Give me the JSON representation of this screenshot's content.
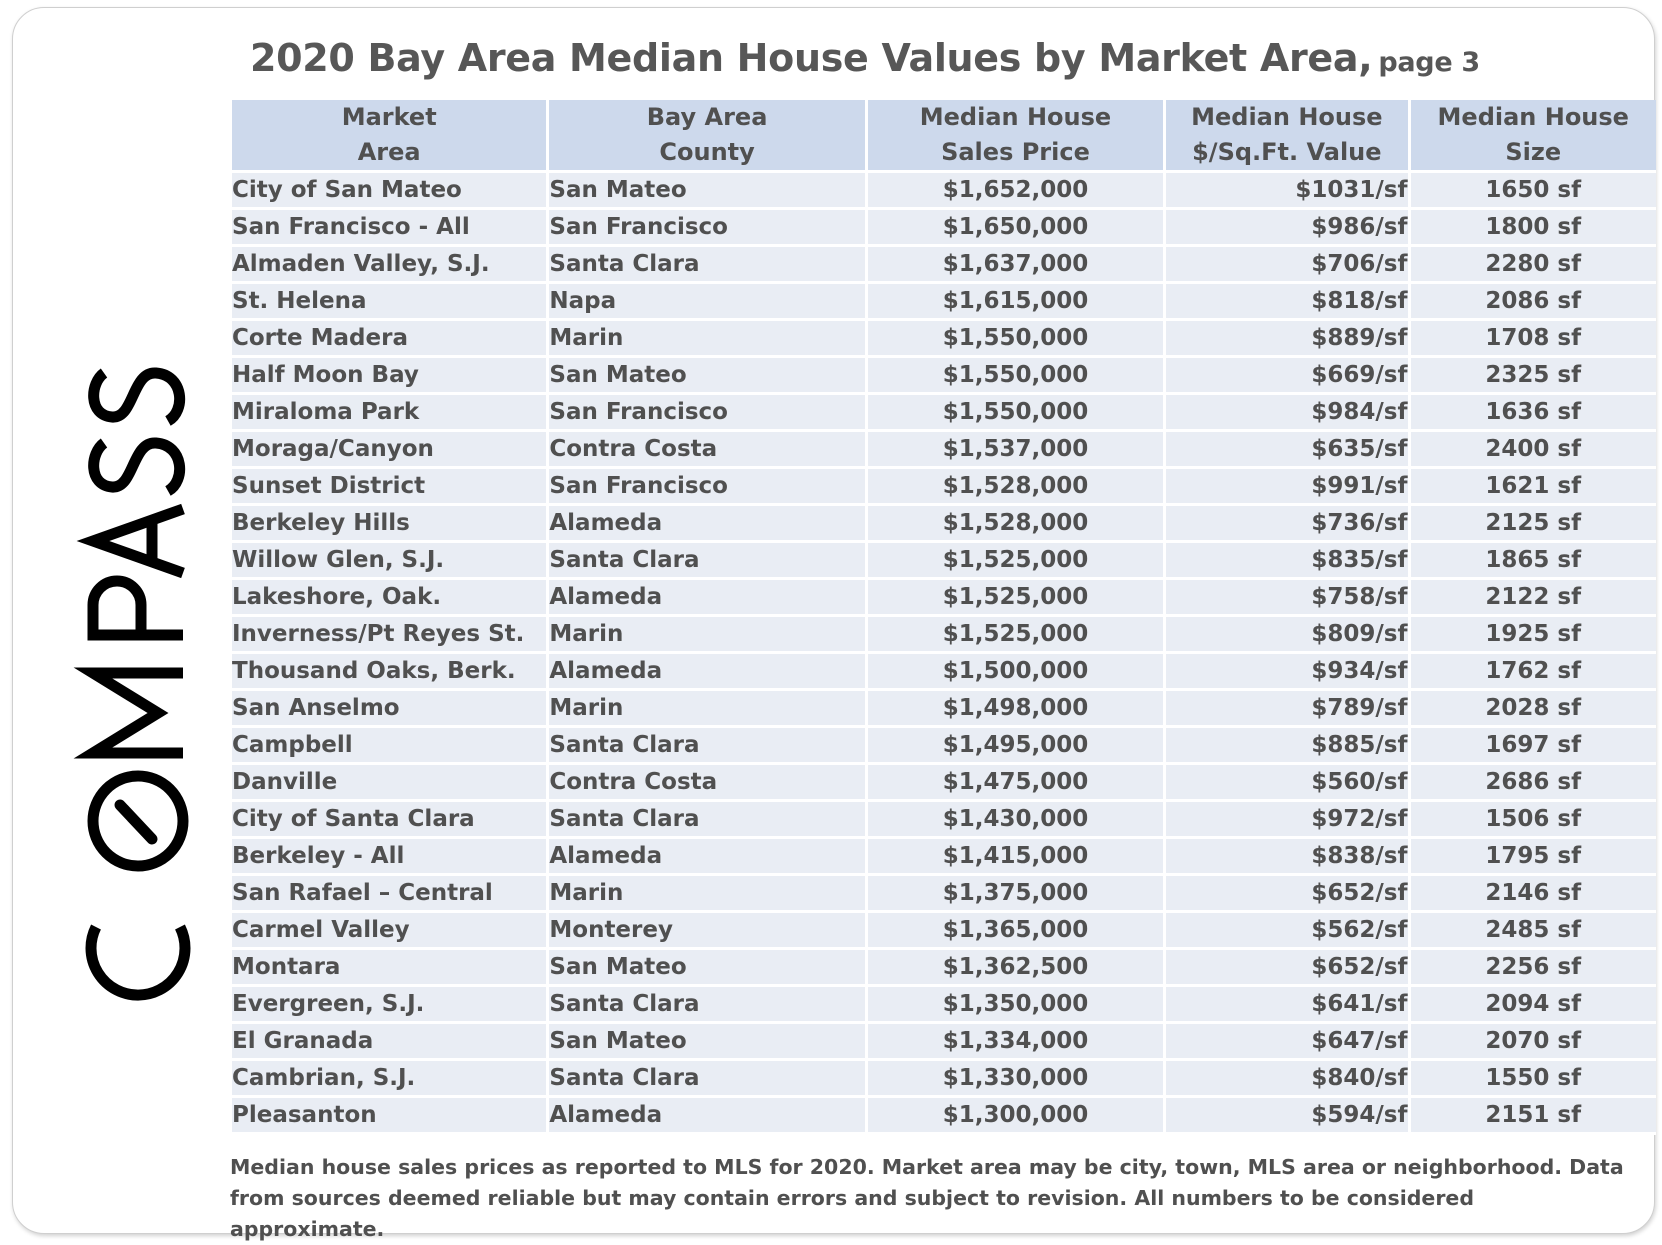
{
  "logo": {
    "text": "COMPASS",
    "icon": "compass-wordmark"
  },
  "title": {
    "main": "2020 Bay Area Median House Values by Market Area,",
    "suffix": "page 3"
  },
  "table": {
    "headers": [
      "Market\nArea",
      "Bay Area\nCounty",
      "Median House\nSales Price",
      "Median House\n$/Sq.Ft. Value",
      "Median House\nSize"
    ],
    "rows": [
      [
        "City of San Mateo",
        "San Mateo",
        "$1,652,000",
        "$1031/sf",
        "1650 sf"
      ],
      [
        "San Francisco - All",
        "San Francisco",
        "$1,650,000",
        "$986/sf",
        "1800 sf"
      ],
      [
        "Almaden Valley, S.J.",
        "Santa Clara",
        "$1,637,000",
        "$706/sf",
        "2280 sf"
      ],
      [
        "St. Helena",
        "Napa",
        "$1,615,000",
        "$818/sf",
        "2086 sf"
      ],
      [
        "Corte Madera",
        "Marin",
        "$1,550,000",
        "$889/sf",
        "1708 sf"
      ],
      [
        "Half Moon Bay",
        "San Mateo",
        "$1,550,000",
        "$669/sf",
        "2325 sf"
      ],
      [
        "Miraloma Park",
        "San Francisco",
        "$1,550,000",
        "$984/sf",
        "1636 sf"
      ],
      [
        "Moraga/Canyon",
        "Contra Costa",
        "$1,537,000",
        "$635/sf",
        "2400 sf"
      ],
      [
        "Sunset District",
        "San Francisco",
        "$1,528,000",
        "$991/sf",
        "1621 sf"
      ],
      [
        "Berkeley Hills",
        "Alameda",
        "$1,528,000",
        "$736/sf",
        "2125 sf"
      ],
      [
        "Willow Glen, S.J.",
        "Santa Clara",
        "$1,525,000",
        "$835/sf",
        "1865 sf"
      ],
      [
        "Lakeshore, Oak.",
        "Alameda",
        "$1,525,000",
        "$758/sf",
        "2122 sf"
      ],
      [
        "Inverness/Pt Reyes St.",
        "Marin",
        "$1,525,000",
        "$809/sf",
        "1925 sf"
      ],
      [
        "Thousand Oaks, Berk.",
        "Alameda",
        "$1,500,000",
        "$934/sf",
        "1762 sf"
      ],
      [
        "San Anselmo",
        "Marin",
        "$1,498,000",
        "$789/sf",
        "2028 sf"
      ],
      [
        "Campbell",
        "Santa Clara",
        "$1,495,000",
        "$885/sf",
        "1697 sf"
      ],
      [
        "Danville",
        "Contra Costa",
        "$1,475,000",
        "$560/sf",
        "2686 sf"
      ],
      [
        "City of Santa Clara",
        "Santa Clara",
        "$1,430,000",
        "$972/sf",
        "1506 sf"
      ],
      [
        "Berkeley - All",
        "Alameda",
        "$1,415,000",
        "$838/sf",
        "1795 sf"
      ],
      [
        "San Rafael – Central",
        "Marin",
        "$1,375,000",
        "$652/sf",
        "2146 sf"
      ],
      [
        "Carmel Valley",
        "Monterey",
        "$1,365,000",
        "$562/sf",
        "2485 sf"
      ],
      [
        "Montara",
        "San Mateo",
        "$1,362,500",
        "$652/sf",
        "2256 sf"
      ],
      [
        "Evergreen, S.J.",
        "Santa Clara",
        "$1,350,000",
        "$641/sf",
        "2094 sf"
      ],
      [
        "El Granada",
        "San Mateo",
        "$1,334,000",
        "$647/sf",
        "2070 sf"
      ],
      [
        "Cambrian, S.J.",
        "Santa Clara",
        "$1,330,000",
        "$840/sf",
        "1550 sf"
      ],
      [
        "Pleasanton",
        "Alameda",
        "$1,300,000",
        "$594/sf",
        "2151 sf"
      ]
    ]
  },
  "footnote": "Median house sales prices as reported to MLS for 2020. Market area may be city, town, MLS area or neighborhood. Data from sources deemed reliable but may contain errors and subject to revision. All numbers to be considered approximate.",
  "colors": {
    "header_bg": "#cdd9ec",
    "row_bg": "#e9edf4",
    "text": "#505050",
    "title": "#575757",
    "logo": "#000000"
  }
}
